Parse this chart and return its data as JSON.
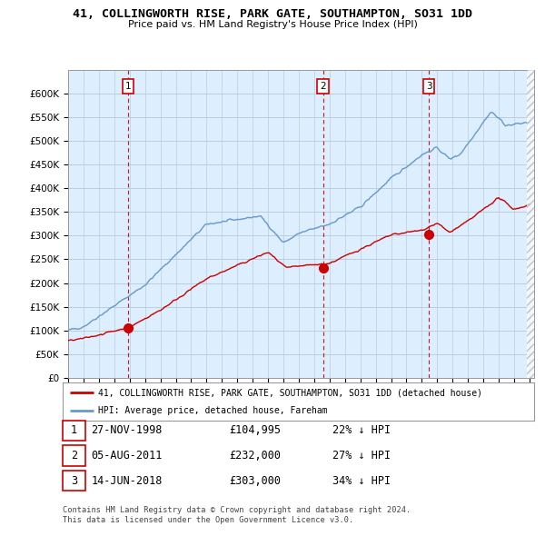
{
  "title": "41, COLLINGWORTH RISE, PARK GATE, SOUTHAMPTON, SO31 1DD",
  "subtitle": "Price paid vs. HM Land Registry's House Price Index (HPI)",
  "ylim": [
    0,
    650000
  ],
  "yticks": [
    0,
    50000,
    100000,
    150000,
    200000,
    250000,
    300000,
    350000,
    400000,
    450000,
    500000,
    550000,
    600000
  ],
  "ytick_labels": [
    "£0",
    "£50K",
    "£100K",
    "£150K",
    "£200K",
    "£250K",
    "£300K",
    "£350K",
    "£400K",
    "£450K",
    "£500K",
    "£550K",
    "£600K"
  ],
  "sale_prices": [
    104995,
    232000,
    303000
  ],
  "sale_year_nums": [
    1998.9,
    2011.58,
    2018.45
  ],
  "sale_labels": [
    "1",
    "2",
    "3"
  ],
  "red_color": "#cc0000",
  "blue_color": "#6699cc",
  "chart_bg": "#ddeeff",
  "legend_red_label": "41, COLLINGWORTH RISE, PARK GATE, SOUTHAMPTON, SO31 1DD (detached house)",
  "legend_blue_label": "HPI: Average price, detached house, Fareham",
  "table_rows": [
    [
      "1",
      "27-NOV-1998",
      "£104,995",
      "22% ↓ HPI"
    ],
    [
      "2",
      "05-AUG-2011",
      "£232,000",
      "27% ↓ HPI"
    ],
    [
      "3",
      "14-JUN-2018",
      "£303,000",
      "34% ↓ HPI"
    ]
  ],
  "footnote1": "Contains HM Land Registry data © Crown copyright and database right 2024.",
  "footnote2": "This data is licensed under the Open Government Licence v3.0.",
  "background_color": "#ffffff",
  "grid_color": "#bbccdd",
  "vline_color": "#cc0000"
}
